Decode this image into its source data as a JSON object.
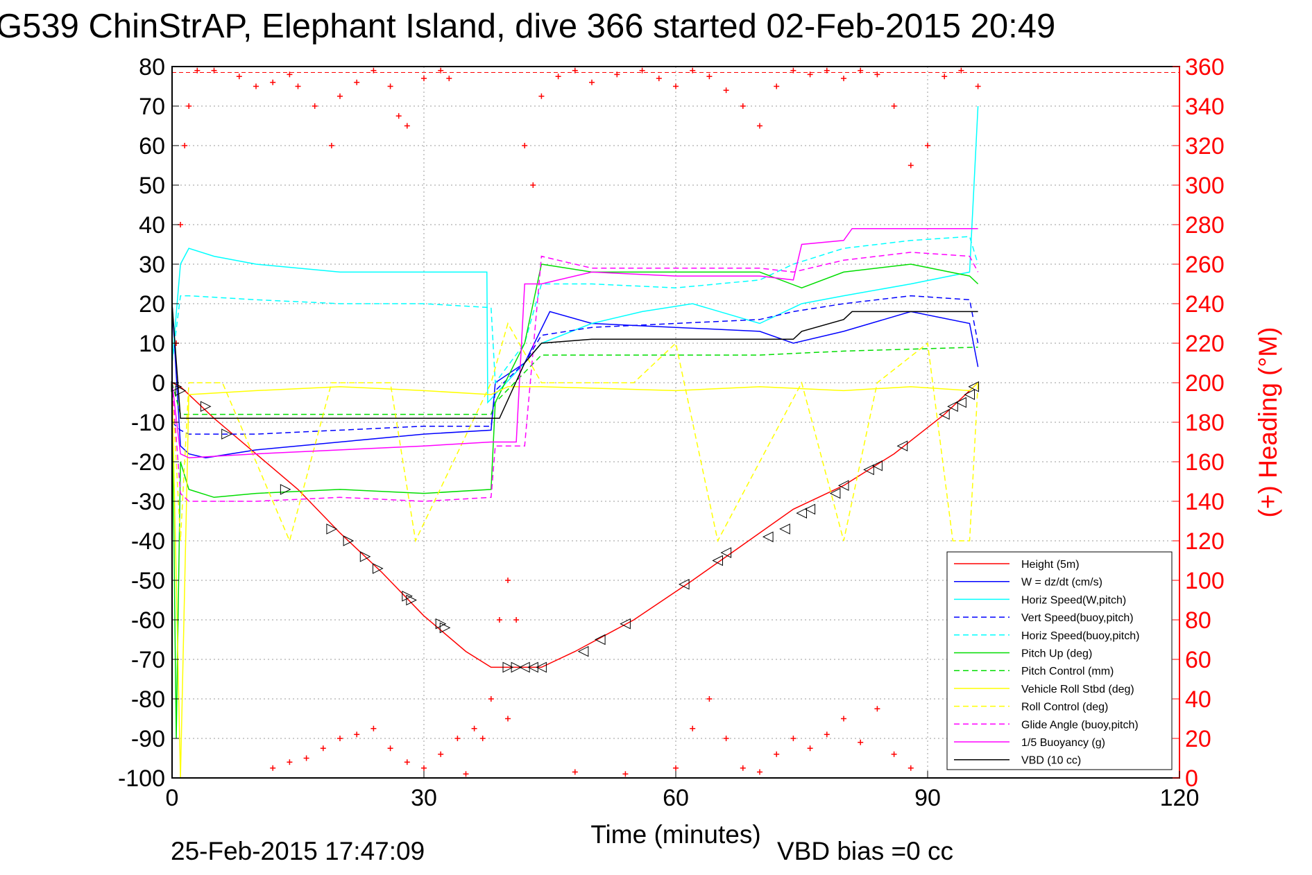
{
  "chart_data": {
    "type": "line",
    "title": "G539 ChinStrAP, Elephant Island, dive 366 started 02-Feb-2015 20:49",
    "xlabel": "Time (minutes)",
    "ylabel_right": "(+) Heading (°M)",
    "footer_left": "25-Feb-2015 17:47:09",
    "footer_right": "VBD bias =0 cc",
    "xlim": [
      0,
      120
    ],
    "ylim_left": [
      -100,
      80
    ],
    "ylim_right": [
      0,
      360
    ],
    "xticks": [
      0,
      30,
      60,
      90,
      120
    ],
    "yticks_left": [
      80,
      70,
      60,
      50,
      40,
      30,
      20,
      10,
      0,
      -10,
      -20,
      -30,
      -40,
      -50,
      -60,
      -70,
      -80,
      -90,
      -100
    ],
    "yticks_right": [
      360,
      340,
      320,
      300,
      280,
      260,
      240,
      220,
      200,
      180,
      160,
      140,
      120,
      100,
      80,
      60,
      40,
      20,
      0
    ],
    "grid": true,
    "legend_position": "lower-right",
    "colors": {
      "red": "#ff0000",
      "blue": "#0000ff",
      "cyan": "#00ffff",
      "green": "#00dd00",
      "yellow": "#ffff00",
      "magenta": "#ff00ff",
      "black": "#000000"
    },
    "series": [
      {
        "name": "Height (5m)",
        "color": "#ff0000",
        "style": "solid",
        "x": [
          0,
          1,
          2,
          5,
          10,
          15,
          20,
          25,
          30,
          35,
          38,
          42,
          44,
          48,
          55,
          62,
          68,
          74,
          80,
          86,
          92,
          95,
          96
        ],
        "y": [
          0,
          -1,
          -3,
          -9,
          -18,
          -27,
          -38,
          -48,
          -59,
          -68,
          -72,
          -72,
          -72,
          -68,
          -60,
          -50,
          -41,
          -32,
          -26,
          -18,
          -8,
          -2,
          0
        ]
      },
      {
        "name": "W = dz/dt (cm/s)",
        "color": "#0000ff",
        "style": "solid",
        "x": [
          0,
          1,
          2,
          4,
          10,
          20,
          30,
          38,
          38.5,
          42,
          45,
          50,
          60,
          70,
          74,
          80,
          88,
          95,
          96
        ],
        "y": [
          20,
          -16,
          -18,
          -19,
          -17,
          -15,
          -13,
          -12,
          0,
          5,
          18,
          15,
          14,
          13,
          10,
          13,
          18,
          15,
          4
        ]
      },
      {
        "name": "Horiz Speed(W,pitch)",
        "color": "#00ffff",
        "style": "solid",
        "x": [
          0,
          1,
          2,
          5,
          10,
          20,
          30,
          37.5,
          37.6,
          42,
          44,
          50,
          56,
          62,
          70,
          75,
          80,
          88,
          95,
          96
        ],
        "y": [
          5,
          30,
          34,
          32,
          30,
          28,
          28,
          28,
          -5,
          5,
          10,
          15,
          18,
          20,
          15,
          20,
          22,
          25,
          28,
          70
        ]
      },
      {
        "name": "Vert Speed(buoy,pitch)",
        "color": "#0000ff",
        "style": "dashed",
        "x": [
          0,
          1,
          2,
          10,
          20,
          30,
          38,
          38.5,
          42,
          44,
          50,
          60,
          70,
          74,
          80,
          88,
          95,
          96
        ],
        "y": [
          -10,
          -12,
          -13,
          -13,
          -12,
          -11,
          -11,
          -2,
          5,
          12,
          14,
          15,
          16,
          18,
          20,
          22,
          21,
          10
        ]
      },
      {
        "name": "Horiz Speed(buoy,pitch)",
        "color": "#00ffff",
        "style": "dashed",
        "x": [
          0,
          1,
          2,
          10,
          20,
          30,
          38,
          38.5,
          42,
          44,
          50,
          60,
          70,
          74,
          80,
          88,
          95,
          96
        ],
        "y": [
          5,
          22,
          22,
          21,
          20,
          20,
          19,
          0,
          10,
          25,
          25,
          24,
          26,
          30,
          34,
          36,
          37,
          30
        ]
      },
      {
        "name": "Pitch Up (deg)",
        "color": "#00dd00",
        "style": "solid",
        "x": [
          0,
          0.5,
          1,
          2,
          5,
          10,
          20,
          30,
          38,
          38.5,
          42,
          44,
          50,
          60,
          70,
          75,
          80,
          88,
          95,
          96
        ],
        "y": [
          0,
          -90,
          -20,
          -27,
          -29,
          -28,
          -27,
          -28,
          -27,
          -5,
          10,
          30,
          28,
          28,
          28,
          24,
          28,
          30,
          27,
          25
        ]
      },
      {
        "name": "Pitch Control (mm)",
        "color": "#00dd00",
        "style": "dashed",
        "x": [
          0,
          1,
          2,
          38,
          38.5,
          44,
          70,
          80,
          96
        ],
        "y": [
          0,
          -8,
          -8,
          -8,
          -5,
          7,
          7,
          8,
          9
        ]
      },
      {
        "name": "Vehicle Roll Stbd (deg)",
        "color": "#ffff00",
        "style": "solid",
        "x": [
          0,
          1,
          2,
          10,
          20,
          30,
          38,
          40,
          44,
          60,
          70,
          80,
          88,
          95,
          96
        ],
        "y": [
          0,
          -100,
          -3,
          -2,
          -1,
          -2,
          -3,
          -1,
          -1,
          -2,
          -1,
          -2,
          -1,
          -2,
          0
        ]
      },
      {
        "name": "Roll Control (deg)",
        "color": "#ffff00",
        "style": "dashed",
        "x": [
          0,
          1,
          2,
          6,
          14,
          19,
          26,
          29,
          38,
          40,
          44,
          55,
          60,
          65,
          75,
          80,
          84,
          90,
          93,
          95,
          96
        ],
        "y": [
          0,
          -40,
          0,
          0,
          -40,
          0,
          0,
          -40,
          0,
          15,
          0,
          0,
          10,
          -40,
          0,
          -40,
          0,
          10,
          -40,
          -40,
          0
        ]
      },
      {
        "name": "Glide Angle (buoy,pitch)",
        "color": "#ff00ff",
        "style": "dashed",
        "x": [
          0,
          1,
          2,
          5,
          10,
          20,
          30,
          38,
          38.5,
          42,
          44,
          50,
          60,
          70,
          74,
          80,
          88,
          95,
          96
        ],
        "y": [
          0,
          -28,
          -30,
          -30,
          -30,
          -29,
          -30,
          -29,
          -16,
          -16,
          32,
          29,
          29,
          29,
          28,
          31,
          33,
          32,
          28
        ]
      },
      {
        "name": "1/5 Buoyancy (g)",
        "color": "#ff00ff",
        "style": "solid",
        "x": [
          0,
          1,
          2,
          10,
          20,
          30,
          38,
          41,
          42,
          44,
          50,
          60,
          70,
          74,
          75,
          80,
          81,
          96
        ],
        "y": [
          0,
          -18,
          -19,
          -18,
          -17,
          -16,
          -15,
          -15,
          25,
          25,
          28,
          27,
          27,
          26,
          35,
          36,
          39,
          39
        ]
      },
      {
        "name": "VBD (10 cc)",
        "color": "#000000",
        "style": "solid",
        "x": [
          0,
          1,
          2,
          10,
          20,
          30,
          38,
          39,
          42,
          44,
          50,
          60,
          70,
          74,
          75,
          80,
          81,
          96
        ],
        "y": [
          20,
          -9,
          -9,
          -9,
          -9,
          -9,
          -9,
          -9,
          5,
          10,
          11,
          11,
          11,
          11,
          13,
          16,
          18,
          18
        ]
      }
    ],
    "heading_series": {
      "name": "(+) Heading (°M)",
      "color": "#ff0000",
      "marker": "+",
      "x": [
        0.5,
        1,
        1.5,
        2,
        3,
        5,
        8,
        10,
        12,
        14,
        15,
        17,
        19,
        20,
        22,
        24,
        26,
        27,
        28,
        30,
        32,
        33,
        35,
        37,
        38,
        39,
        40,
        41,
        42,
        43,
        44,
        46,
        48,
        50,
        53,
        56,
        58,
        60,
        62,
        64,
        66,
        68,
        70,
        72,
        74,
        76,
        78,
        80,
        82,
        84,
        86,
        88,
        90,
        92,
        94,
        96
      ],
      "y": [
        220,
        280,
        320,
        340,
        358,
        358,
        355,
        350,
        352,
        356,
        350,
        340,
        320,
        345,
        352,
        358,
        350,
        335,
        330,
        354,
        358,
        354,
        2,
        20,
        40,
        80,
        100,
        80,
        320,
        300,
        345,
        355,
        358,
        352,
        356,
        358,
        354,
        350,
        358,
        355,
        348,
        340,
        330,
        350,
        358,
        356,
        358,
        354,
        358,
        356,
        340,
        310,
        320,
        355,
        358,
        350
      ]
    },
    "heading_lower_series": {
      "name": "(+) Heading (°M) low",
      "x": [
        12,
        14,
        16,
        18,
        20,
        22,
        24,
        26,
        28,
        30,
        32,
        34,
        36,
        40,
        48,
        54,
        60,
        62,
        64,
        66,
        68,
        70,
        72,
        74,
        76,
        78,
        80,
        82,
        84,
        86,
        88
      ],
      "y": [
        5,
        8,
        10,
        15,
        20,
        22,
        25,
        15,
        8,
        5,
        12,
        20,
        25,
        30,
        3,
        2,
        5,
        25,
        40,
        20,
        5,
        3,
        12,
        20,
        15,
        22,
        30,
        18,
        35,
        12,
        5
      ]
    },
    "markers": {
      "name": "triangle markers",
      "x": [
        0.5,
        1,
        4,
        6.5,
        13.5,
        19,
        21,
        23,
        24.5,
        28,
        28.5,
        32,
        32.5,
        40,
        41,
        42,
        43,
        44,
        49,
        51,
        54,
        61,
        65,
        66,
        71,
        73,
        75,
        76,
        79,
        80,
        83,
        84,
        87,
        92,
        93,
        94,
        95,
        95.5
      ],
      "y": [
        -1,
        -2,
        -6,
        -13,
        -27,
        -37,
        -40,
        -44,
        -47,
        -54,
        -55,
        -61,
        -62,
        -72,
        -72,
        -72,
        -72,
        -72,
        -68,
        -65,
        -61,
        -51,
        -45,
        -43,
        -39,
        -37,
        -33,
        -32,
        -28,
        -26,
        -22,
        -21,
        -16,
        -8,
        -6,
        -5,
        -3,
        -1
      ]
    }
  }
}
